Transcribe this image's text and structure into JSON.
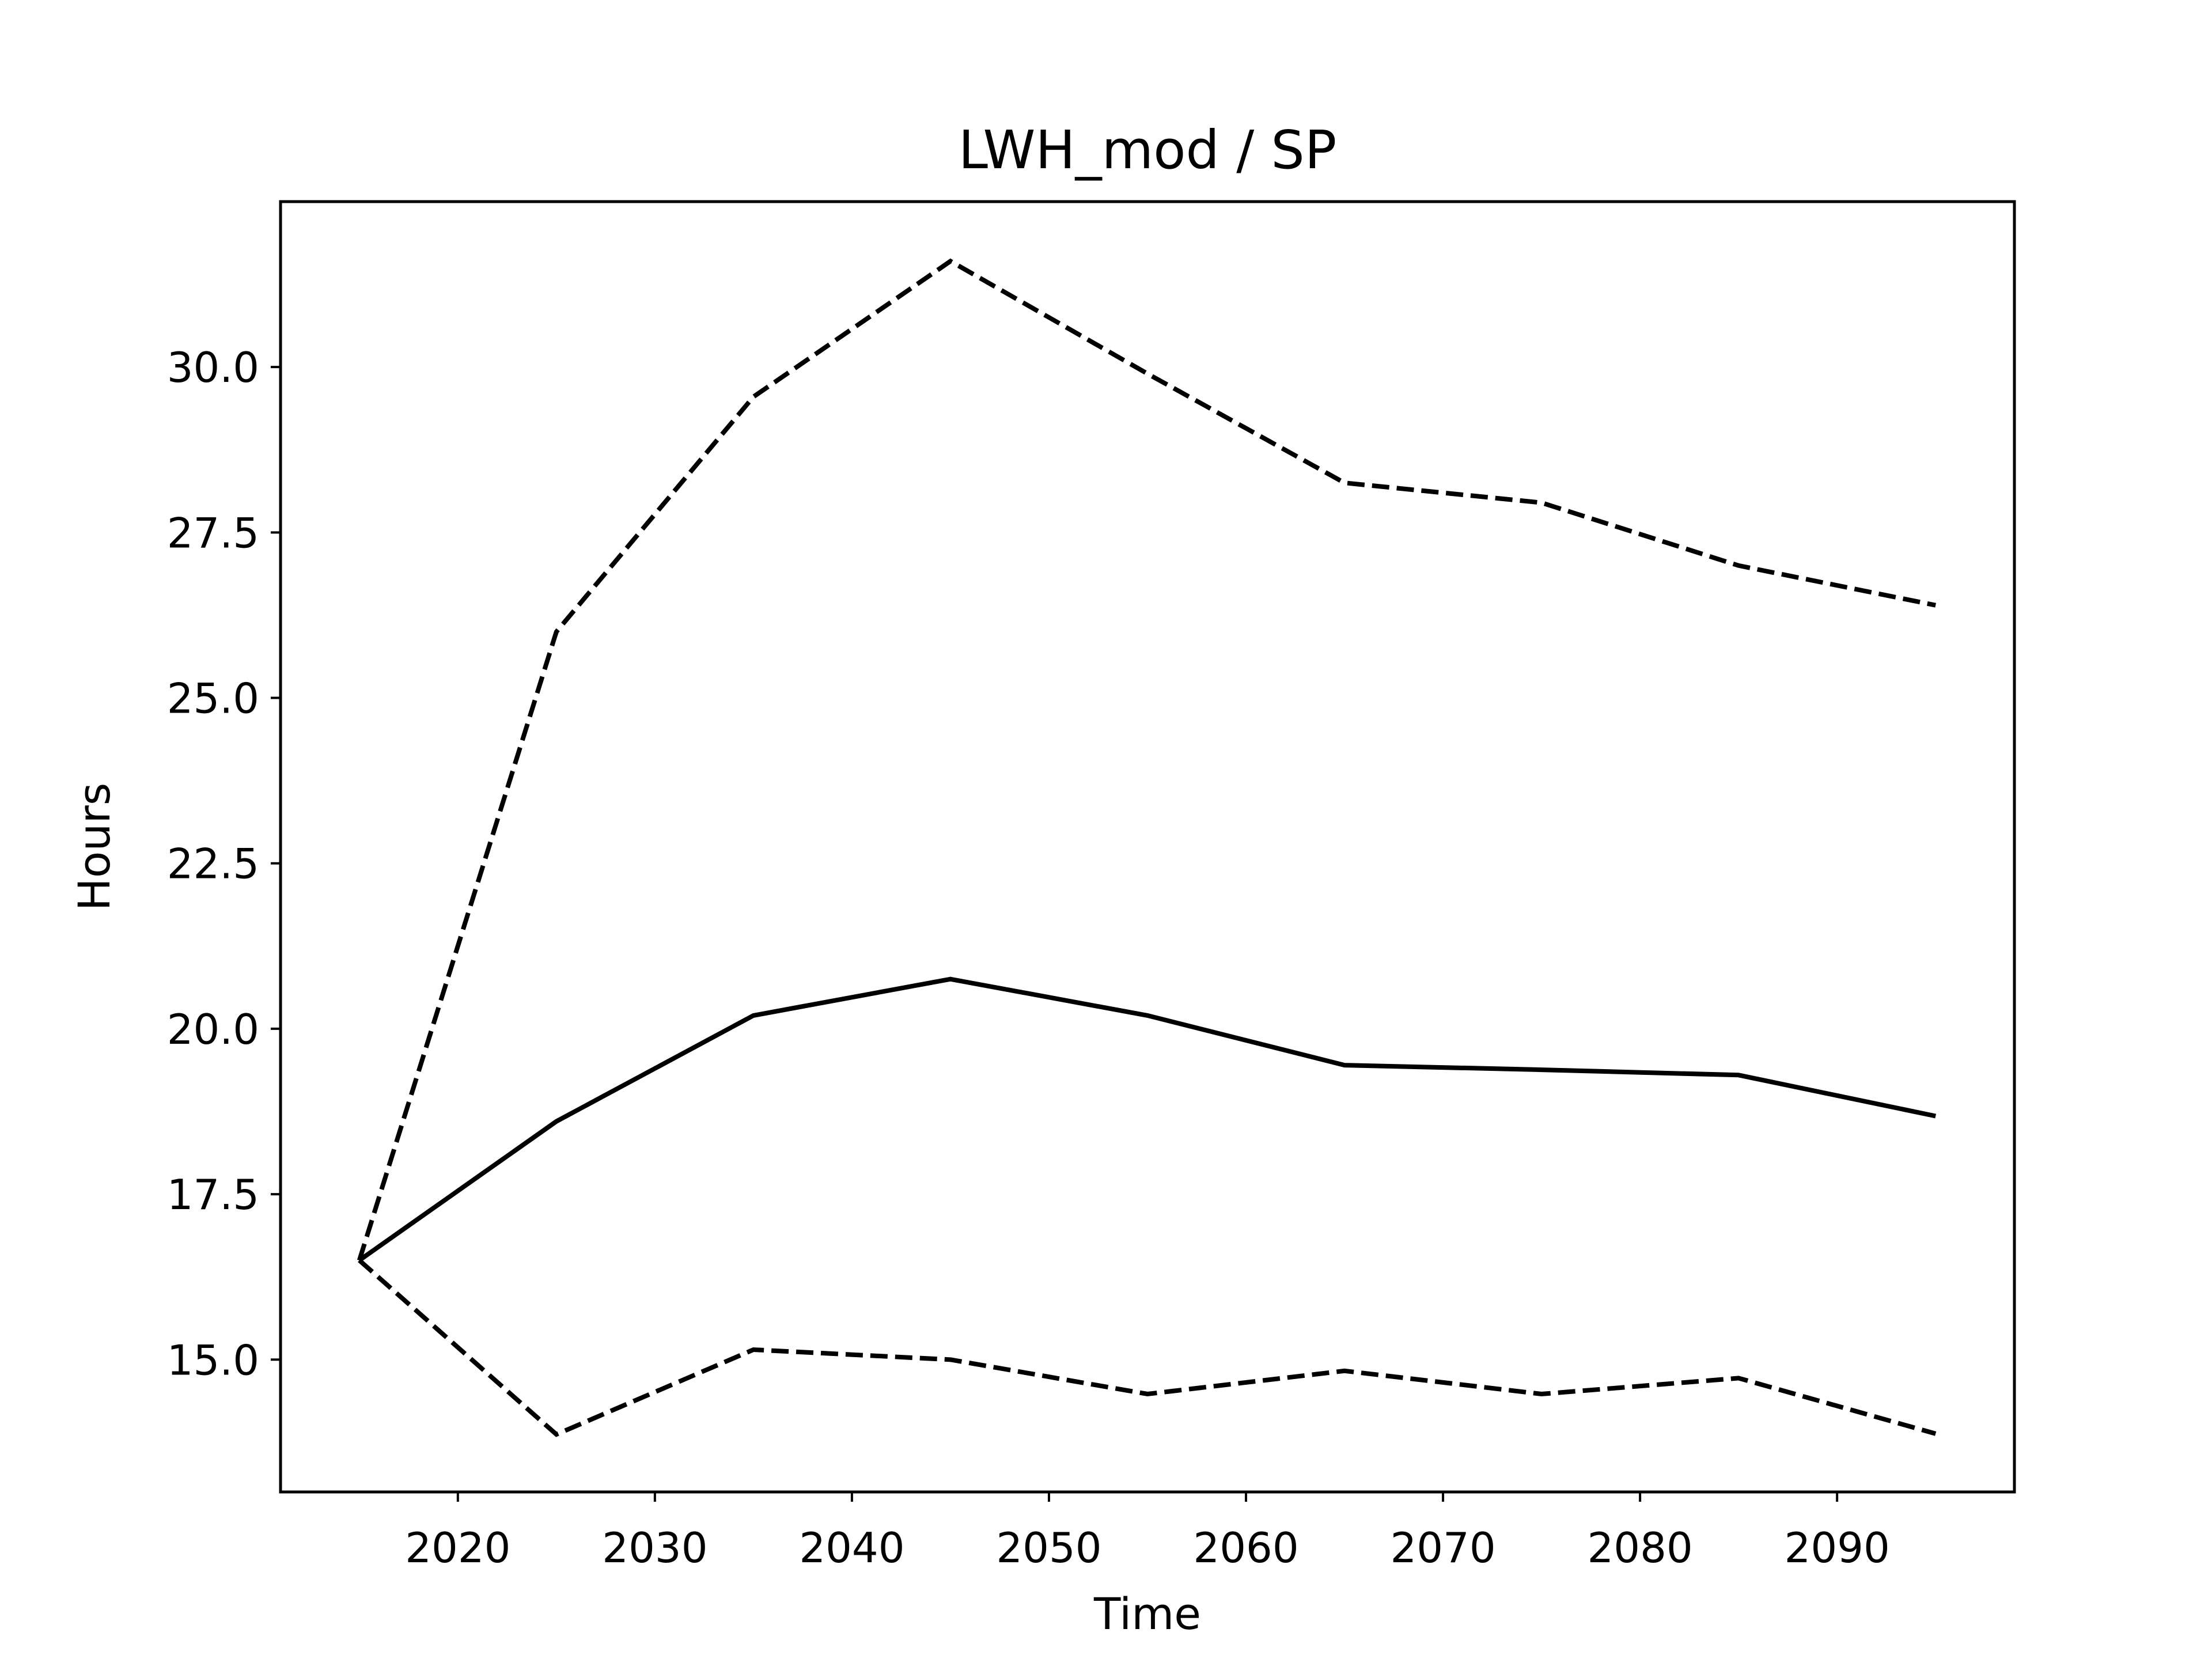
{
  "chart_data": {
    "type": "line",
    "title": "LWH_mod / SP",
    "xlabel": "Time",
    "ylabel": "Hours",
    "xlim": [
      2011,
      2099
    ],
    "ylim": [
      13.0,
      32.5
    ],
    "xticks": [
      2020,
      2030,
      2040,
      2050,
      2060,
      2070,
      2080,
      2090
    ],
    "yticks": [
      15.0,
      17.5,
      20.0,
      22.5,
      25.0,
      27.5,
      30.0
    ],
    "grid": false,
    "legend": "none",
    "x": [
      2015,
      2025,
      2035,
      2045,
      2055,
      2065,
      2075,
      2085,
      2095
    ],
    "series": [
      {
        "style": "solid",
        "color": "#000000",
        "values": [
          16.5,
          18.6,
          20.2,
          20.75,
          20.2,
          19.45,
          19.38,
          19.3,
          18.68
        ]
      },
      {
        "style": "dashed",
        "color": "#000000",
        "values": [
          16.5,
          26.0,
          29.55,
          31.6,
          29.9,
          28.25,
          27.95,
          27.0,
          26.4
        ]
      },
      {
        "style": "dashed",
        "color": "#000000",
        "values": [
          16.5,
          13.87,
          15.15,
          15.0,
          14.48,
          14.83,
          14.48,
          14.72,
          13.88
        ]
      }
    ]
  }
}
